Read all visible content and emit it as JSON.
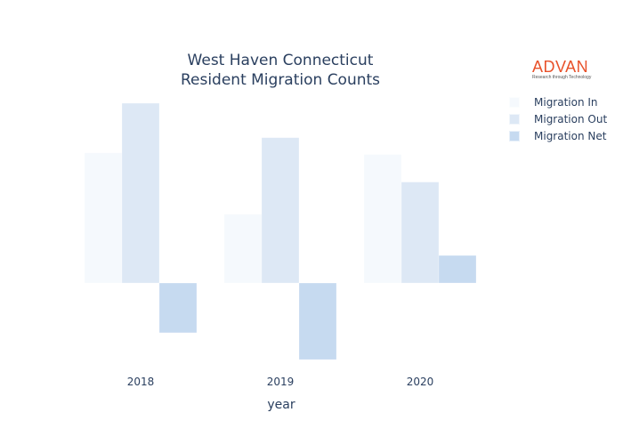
{
  "chart_data": {
    "type": "bar",
    "title_line1": "West Haven Connecticut",
    "title_line2": "Resident Migration Counts",
    "xlabel": "year",
    "ylabel": "",
    "categories": [
      "2018",
      "2019",
      "2020"
    ],
    "series": [
      {
        "name": "Migration In",
        "color": "#f5f9fd",
        "values": [
          1700,
          900,
          1680
        ]
      },
      {
        "name": "Migration Out",
        "color": "#dde8f5",
        "values": [
          2350,
          1900,
          1320
        ]
      },
      {
        "name": "Migration Net",
        "color": "#c6daf0",
        "values": [
          -650,
          -1000,
          360
        ]
      }
    ],
    "ylim": [
      -1000,
      2350
    ],
    "grid": false,
    "legend_position": "top-right",
    "show_y_ticks": false
  },
  "logo": {
    "brand": "ADVAN",
    "tagline": "Research through Technology"
  }
}
